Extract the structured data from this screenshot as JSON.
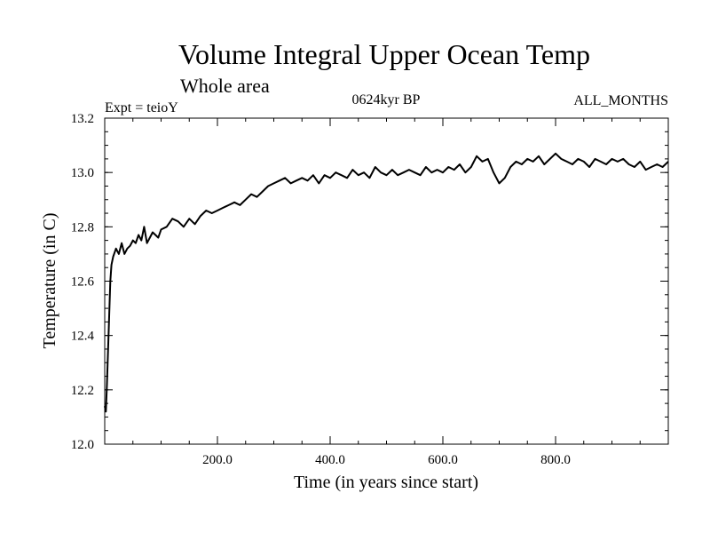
{
  "chart_data": {
    "type": "line",
    "title": "Volume Integral Upper Ocean Temp",
    "subtitle": "Whole area",
    "expt_label": "Expt = teioY",
    "period_label": "0624kyr BP",
    "months_label": "ALL_MONTHS",
    "xlabel": "Time (in years since start)",
    "ylabel": "Temperature (in C)",
    "xlim": [
      0,
      1000
    ],
    "ylim": [
      12.0,
      13.2
    ],
    "x_ticks": [
      {
        "value": 200,
        "label": "200.0"
      },
      {
        "value": 400,
        "label": "400.0"
      },
      {
        "value": 600,
        "label": "600.0"
      },
      {
        "value": 800,
        "label": "800.0"
      }
    ],
    "y_ticks": [
      {
        "value": 12.0,
        "label": "12.0"
      },
      {
        "value": 12.2,
        "label": "12.2"
      },
      {
        "value": 12.4,
        "label": "12.4"
      },
      {
        "value": 12.6,
        "label": "12.6"
      },
      {
        "value": 12.8,
        "label": "12.8"
      },
      {
        "value": 13.0,
        "label": "13.0"
      },
      {
        "value": 13.2,
        "label": "13.2"
      }
    ],
    "x_minor_step": 50,
    "y_minor_step": 0.05,
    "series": [
      {
        "name": "Volume integral upper ocean temperature",
        "color": "#000000",
        "x": [
          0,
          2,
          4,
          6,
          8,
          10,
          12,
          15,
          20,
          25,
          30,
          35,
          40,
          45,
          50,
          55,
          60,
          65,
          70,
          75,
          80,
          85,
          90,
          95,
          100,
          110,
          120,
          130,
          140,
          150,
          160,
          170,
          180,
          190,
          200,
          210,
          220,
          230,
          240,
          250,
          260,
          270,
          280,
          290,
          300,
          310,
          320,
          330,
          340,
          350,
          360,
          370,
          380,
          390,
          400,
          410,
          420,
          430,
          440,
          450,
          460,
          470,
          480,
          490,
          500,
          510,
          520,
          530,
          540,
          550,
          560,
          570,
          580,
          590,
          600,
          610,
          620,
          630,
          640,
          650,
          660,
          670,
          680,
          690,
          700,
          710,
          720,
          730,
          740,
          750,
          760,
          770,
          780,
          790,
          800,
          810,
          820,
          830,
          840,
          850,
          860,
          870,
          880,
          890,
          900,
          910,
          920,
          930,
          940,
          950,
          960,
          970,
          980,
          990,
          1000
        ],
        "values": [
          12.14,
          12.12,
          12.22,
          12.35,
          12.48,
          12.6,
          12.66,
          12.69,
          12.72,
          12.7,
          12.74,
          12.7,
          12.72,
          12.73,
          12.75,
          12.74,
          12.77,
          12.75,
          12.8,
          12.74,
          12.76,
          12.78,
          12.77,
          12.76,
          12.79,
          12.8,
          12.83,
          12.82,
          12.8,
          12.83,
          12.81,
          12.84,
          12.86,
          12.85,
          12.86,
          12.87,
          12.88,
          12.89,
          12.88,
          12.9,
          12.92,
          12.91,
          12.93,
          12.95,
          12.96,
          12.97,
          12.98,
          12.96,
          12.97,
          12.98,
          12.97,
          12.99,
          12.96,
          12.99,
          12.98,
          13.0,
          12.99,
          12.98,
          13.01,
          12.99,
          13.0,
          12.98,
          13.02,
          13.0,
          12.99,
          13.01,
          12.99,
          13.0,
          13.01,
          13.0,
          12.99,
          13.02,
          13.0,
          13.01,
          13.0,
          13.02,
          13.01,
          13.03,
          13.0,
          13.02,
          13.06,
          13.04,
          13.05,
          13.0,
          12.96,
          12.98,
          13.02,
          13.04,
          13.03,
          13.05,
          13.04,
          13.06,
          13.03,
          13.05,
          13.07,
          13.05,
          13.04,
          13.03,
          13.05,
          13.04,
          13.02,
          13.05,
          13.04,
          13.03,
          13.05,
          13.04,
          13.05,
          13.03,
          13.02,
          13.04,
          13.01,
          13.02,
          13.03,
          13.02,
          13.04
        ]
      }
    ]
  }
}
